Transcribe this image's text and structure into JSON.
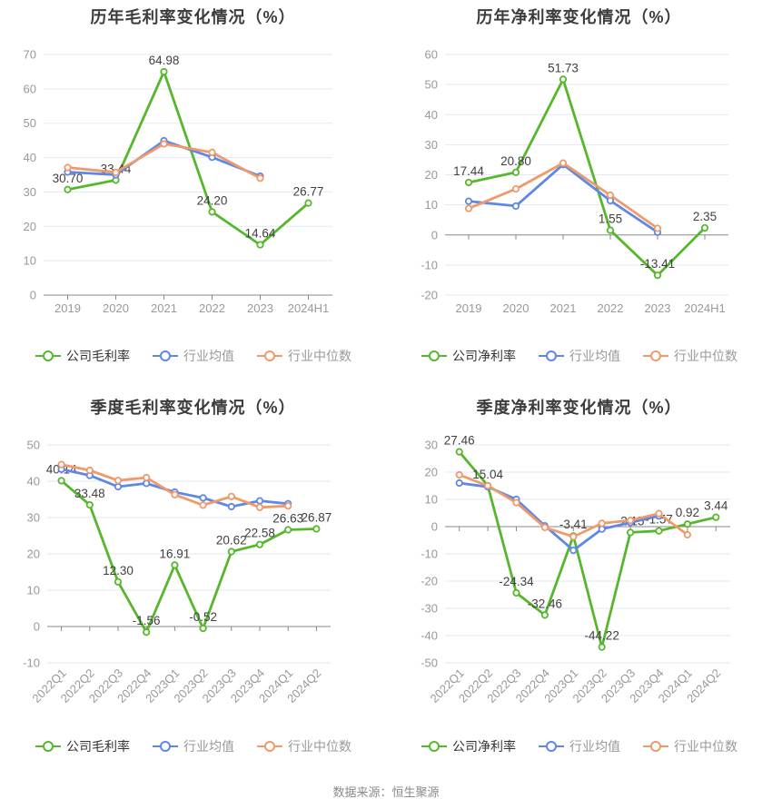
{
  "page": {
    "background": "#ffffff",
    "footer": "数据来源：恒生聚源"
  },
  "colors": {
    "company_green": "#57b72c",
    "industry_blue": "#5e87e8",
    "industry_orange": "#f0996a",
    "grid_line": "#e2e9f5",
    "axis_line": "#888888",
    "tick_label": "#999999",
    "data_label": "#404040",
    "title": "#3c3c3c"
  },
  "chart_data": [
    {
      "id": "annual-gross-margin",
      "type": "line",
      "title": "历年毛利率变化情况（%）",
      "categories": [
        "2019",
        "2020",
        "2021",
        "2022",
        "2023",
        "2024H1"
      ],
      "ylim": [
        0,
        70
      ],
      "ytick_step": 10,
      "grid": true,
      "legend_position": "bottom",
      "series": [
        {
          "name": "公司毛利率",
          "color": "company_green",
          "show_labels": true,
          "values": [
            30.7,
            33.44,
            64.98,
            24.2,
            14.64,
            26.77
          ]
        },
        {
          "name": "行业均值",
          "color": "industry_blue",
          "show_labels": false,
          "values": [
            35.8,
            35.0,
            44.9,
            40.1,
            34.6,
            null
          ]
        },
        {
          "name": "行业中位数",
          "color": "industry_orange",
          "show_labels": false,
          "values": [
            37.1,
            35.7,
            44.0,
            41.5,
            34.0,
            null
          ]
        }
      ]
    },
    {
      "id": "annual-net-margin",
      "type": "line",
      "title": "历年净利率变化情况（%）",
      "categories": [
        "2019",
        "2020",
        "2021",
        "2022",
        "2023",
        "2024H1"
      ],
      "ylim": [
        -20,
        60
      ],
      "ytick_step": 10,
      "grid": true,
      "legend_position": "bottom",
      "series": [
        {
          "name": "公司净利率",
          "color": "company_green",
          "show_labels": true,
          "values": [
            17.44,
            20.8,
            51.73,
            1.55,
            -13.41,
            2.35
          ]
        },
        {
          "name": "行业均值",
          "color": "industry_blue",
          "show_labels": false,
          "values": [
            11.2,
            9.6,
            23.4,
            11.4,
            0.9,
            null
          ]
        },
        {
          "name": "行业中位数",
          "color": "industry_orange",
          "show_labels": false,
          "values": [
            8.8,
            15.3,
            23.9,
            13.2,
            2.2,
            null
          ]
        }
      ]
    },
    {
      "id": "quarterly-gross-margin",
      "type": "line",
      "title": "季度毛利率变化情况（%）",
      "categories": [
        "2022Q1",
        "2022Q2",
        "2022Q3",
        "2022Q4",
        "2023Q1",
        "2023Q2",
        "2023Q3",
        "2023Q4",
        "2024Q1",
        "2024Q2"
      ],
      "ylim": [
        -10,
        50
      ],
      "ytick_step": 10,
      "grid": true,
      "legend_position": "bottom",
      "series": [
        {
          "name": "公司毛利率",
          "color": "company_green",
          "show_labels": true,
          "values": [
            40.14,
            33.48,
            12.3,
            -1.56,
            16.91,
            -0.52,
            20.62,
            22.58,
            26.63,
            26.87
          ]
        },
        {
          "name": "行业均值",
          "color": "industry_blue",
          "show_labels": false,
          "values": [
            43.3,
            41.6,
            38.5,
            39.4,
            37.0,
            35.4,
            33.0,
            34.6,
            33.8,
            null
          ]
        },
        {
          "name": "行业中位数",
          "color": "industry_orange",
          "show_labels": false,
          "values": [
            44.6,
            43.0,
            40.2,
            41.0,
            36.3,
            33.4,
            35.8,
            32.8,
            33.2,
            null
          ]
        }
      ]
    },
    {
      "id": "quarterly-net-margin",
      "type": "line",
      "title": "季度净利率变化情况（%）",
      "categories": [
        "2022Q1",
        "2022Q2",
        "2022Q3",
        "2022Q4",
        "2023Q1",
        "2023Q2",
        "2023Q3",
        "2023Q4",
        "2024Q1",
        "2024Q2"
      ],
      "ylim": [
        -50,
        30
      ],
      "ytick_step": 10,
      "grid": true,
      "legend_position": "bottom",
      "series": [
        {
          "name": "公司净利率",
          "color": "company_green",
          "show_labels": true,
          "values": [
            27.46,
            15.04,
            -24.34,
            -32.46,
            -3.41,
            -44.22,
            -2.15,
            -1.57,
            0.92,
            3.44
          ]
        },
        {
          "name": "行业均值",
          "color": "industry_blue",
          "show_labels": false,
          "values": [
            16.0,
            14.6,
            10.0,
            0.3,
            -8.7,
            -0.9,
            1.5,
            3.9,
            null,
            null
          ]
        },
        {
          "name": "行业中位数",
          "color": "industry_orange",
          "show_labels": false,
          "values": [
            19.0,
            15.0,
            8.8,
            -0.3,
            -3.7,
            1.2,
            2.3,
            4.8,
            -3.0,
            null
          ]
        }
      ]
    }
  ]
}
